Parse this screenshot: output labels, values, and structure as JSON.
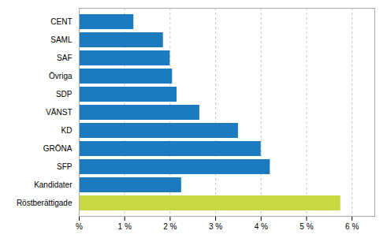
{
  "chart_data": {
    "type": "bar",
    "orientation": "horizontal",
    "categories": [
      "CENT",
      "SAML",
      "SAF",
      "Övriga",
      "SDP",
      "VÄNST",
      "KD",
      "GRÖNA",
      "SFP",
      "Kandidater",
      "Röstberättigade"
    ],
    "values": [
      1.2,
      1.85,
      2.0,
      2.05,
      2.15,
      2.65,
      3.5,
      4.0,
      4.2,
      2.25,
      5.75
    ],
    "colors": [
      "#1c7abf",
      "#1c7abf",
      "#1c7abf",
      "#1c7abf",
      "#1c7abf",
      "#1c7abf",
      "#1c7abf",
      "#1c7abf",
      "#1c7abf",
      "#1c7abf",
      "#c8d843"
    ],
    "xlim": [
      0,
      6.5
    ],
    "xticks": [
      {
        "value": 0,
        "label": "%"
      },
      {
        "value": 1,
        "label": "1 %"
      },
      {
        "value": 2,
        "label": "2 %"
      },
      {
        "value": 3,
        "label": "3 %"
      },
      {
        "value": 4,
        "label": "4 %"
      },
      {
        "value": 5,
        "label": "5 %"
      },
      {
        "value": 6,
        "label": "6 %"
      }
    ],
    "grid": true
  }
}
